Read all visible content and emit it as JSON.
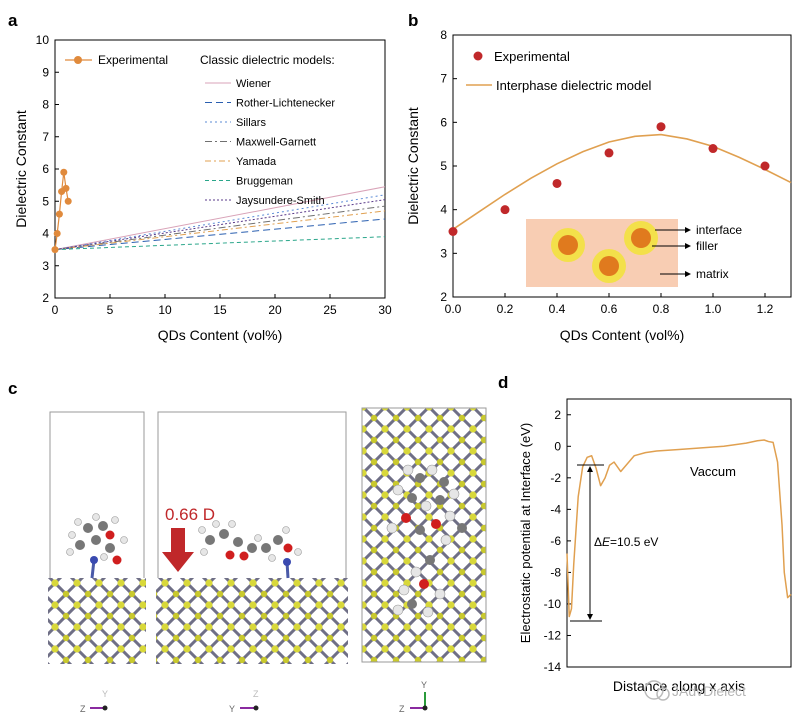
{
  "watermark": "JAdvDielect",
  "panels": {
    "a": {
      "letter": "a"
    },
    "b": {
      "letter": "b"
    },
    "c": {
      "letter": "c",
      "annotation": "0.66 D"
    },
    "d": {
      "letter": "d",
      "vacuum_label": "Vaccum",
      "delta_symbol": "Δ",
      "delta_var": "E",
      "delta_value": "=10.5 eV"
    }
  },
  "chart_data": [
    {
      "id": "a",
      "type": "line",
      "title": "",
      "xlabel": "QDs Content (vol%)",
      "ylabel": "Dielectric Constant",
      "xlim": [
        0,
        30
      ],
      "ylim": [
        2,
        10
      ],
      "xticks": [
        0,
        5,
        10,
        15,
        20,
        25,
        30
      ],
      "yticks": [
        2,
        3,
        4,
        5,
        6,
        7,
        8,
        9,
        10
      ],
      "legend_title": "Classic dielectric models:",
      "experimental": {
        "name": "Experimental",
        "color": "#e08a3c",
        "x": [
          0,
          0.2,
          0.4,
          0.6,
          0.8,
          1.0,
          1.2
        ],
        "y": [
          3.5,
          4.0,
          4.6,
          5.3,
          5.9,
          5.4,
          5.0
        ]
      },
      "series": [
        {
          "name": "Wiener",
          "color": "#d9a3b8",
          "dash": "",
          "x": [
            0,
            30
          ],
          "y": [
            3.5,
            5.45
          ]
        },
        {
          "name": "Rother-Lichtenecker",
          "color": "#2a5fb0",
          "dash": "7,4",
          "x": [
            0,
            30
          ],
          "y": [
            3.5,
            4.45
          ]
        },
        {
          "name": "Sillars",
          "color": "#5b8bd6",
          "dash": "2,3",
          "x": [
            0,
            30
          ],
          "y": [
            3.5,
            5.2
          ]
        },
        {
          "name": "Maxwell-Garnett",
          "color": "#707070",
          "dash": "7,3,2,3",
          "x": [
            0,
            30
          ],
          "y": [
            3.5,
            4.85
          ]
        },
        {
          "name": "Yamada",
          "color": "#e0a050",
          "dash": "6,3,2,3",
          "x": [
            0,
            30
          ],
          "y": [
            3.5,
            4.7
          ]
        },
        {
          "name": "Bruggeman",
          "color": "#2aa68a",
          "dash": "4,3",
          "x": [
            0,
            30
          ],
          "y": [
            3.5,
            3.9
          ]
        },
        {
          "name": "Jaysundere-Smith",
          "color": "#5a3a8a",
          "dash": "2,2",
          "x": [
            0,
            30
          ],
          "y": [
            3.5,
            5.05
          ]
        }
      ]
    },
    {
      "id": "b",
      "type": "scatter",
      "title": "",
      "xlabel": "QDs Content (vol%)",
      "ylabel": "Dielectric Constant",
      "xlim": [
        0,
        1.3
      ],
      "ylim": [
        2,
        8
      ],
      "xticks": [
        0.0,
        0.2,
        0.4,
        0.6,
        0.8,
        1.0,
        1.2
      ],
      "yticks": [
        2,
        3,
        4,
        5,
        6,
        7,
        8
      ],
      "experimental": {
        "name": "Experimental",
        "color": "#c0282a",
        "x": [
          0,
          0.2,
          0.4,
          0.6,
          0.8,
          1.0,
          1.2
        ],
        "y": [
          3.5,
          4.0,
          4.6,
          5.3,
          5.9,
          5.4,
          5.0
        ]
      },
      "model": {
        "name": "Interphase dielectric model",
        "color": "#e0a050",
        "x": [
          0,
          0.1,
          0.2,
          0.3,
          0.4,
          0.5,
          0.6,
          0.7,
          0.8,
          0.9,
          1.0,
          1.1,
          1.2,
          1.3
        ],
        "y": [
          3.55,
          3.95,
          4.35,
          4.72,
          5.05,
          5.33,
          5.55,
          5.68,
          5.72,
          5.62,
          5.45,
          5.2,
          4.92,
          4.62
        ]
      },
      "inset_labels": [
        "interface",
        "filler",
        "matrix"
      ]
    },
    {
      "id": "d",
      "type": "line",
      "title": "",
      "xlabel": "Distance along x axis",
      "ylabel": "Electrostatic potential at Interface (eV)",
      "xlim": [
        0,
        1
      ],
      "ylim": [
        -14,
        3
      ],
      "yticks": [
        -14,
        -12,
        -10,
        -8,
        -6,
        -4,
        -2,
        0,
        2
      ],
      "series": [
        {
          "name": "potential",
          "color": "#e0a050",
          "x": [
            0.0,
            0.01,
            0.02,
            0.03,
            0.05,
            0.07,
            0.09,
            0.11,
            0.13,
            0.15,
            0.17,
            0.19,
            0.21,
            0.24,
            0.27,
            0.3,
            0.35,
            0.4,
            0.5,
            0.6,
            0.7,
            0.8,
            0.85,
            0.88,
            0.9,
            0.92,
            0.94,
            0.96,
            0.97,
            0.985,
            1.0
          ],
          "y": [
            -6.8,
            -10.8,
            -10.3,
            -7.5,
            -3.2,
            -1.3,
            -0.7,
            -0.6,
            -1.4,
            -2.5,
            -2.0,
            -1.2,
            -1.0,
            -1.6,
            -1.1,
            -0.6,
            -0.4,
            -0.3,
            -0.2,
            -0.1,
            0.0,
            0.2,
            0.35,
            0.4,
            0.3,
            0.25,
            -1.0,
            -5.0,
            -8.0,
            -9.6,
            -9.4
          ]
        }
      ]
    }
  ]
}
